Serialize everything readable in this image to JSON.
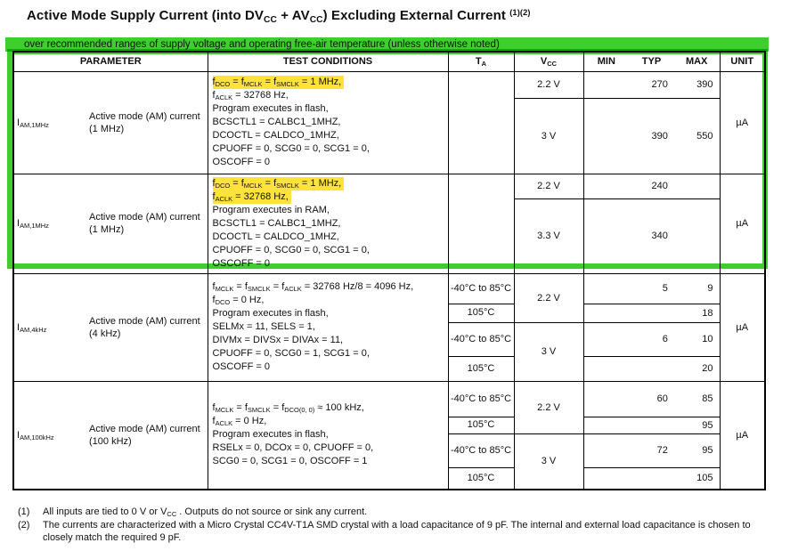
{
  "colors": {
    "green": "#3ecf2e",
    "yellow": "#ffe33b"
  },
  "title": "Active Mode Supply Current (into DV~CC~ + AV~CC~) Excluding External Current ^(1)(2)^",
  "subtitle": "over recommended ranges of supply voltage and operating free-air temperature (unless otherwise noted)",
  "table": {
    "headers": {
      "parameter": "PARAMETER",
      "test_conditions": "TEST CONDITIONS",
      "ta": "T~A~",
      "vcc": "V~CC~",
      "min": "MIN",
      "typ": "TYP",
      "max": "MAX",
      "unit": "UNIT"
    },
    "rows": [
      {
        "symbol": "I~AM,1MHz~",
        "name": "Active mode (AM) current (1 MHz)",
        "ta": "",
        "unit": "µA",
        "conditions": [
          {
            "text": "f~DCO~ = f~MCLK~ = f~SMCLK~ = 1 MHz,",
            "highlight": true
          },
          {
            "text": "f~ACLK~ = 32768 Hz,",
            "highlight": false
          },
          {
            "text": "Program executes in flash,",
            "highlight": false
          },
          {
            "text": "BCSCTL1 = CALBC1_1MHZ,",
            "highlight": false
          },
          {
            "text": "DCOCTL = CALDCO_1MHZ,",
            "highlight": false
          },
          {
            "text": "CPUOFF = 0, SCG0 = 0, SCG1 = 0,",
            "highlight": false
          },
          {
            "text": "OSCOFF = 0",
            "highlight": false
          }
        ],
        "subrows": [
          {
            "vcc": "2.2 V",
            "min": "",
            "typ": "270",
            "max": "390"
          },
          {
            "vcc": "3 V",
            "min": "",
            "typ": "390",
            "max": "550"
          }
        ]
      },
      {
        "symbol": "I~AM,1MHz~",
        "name": "Active mode (AM) current (1 MHz)",
        "ta": "",
        "unit": "µA",
        "conditions": [
          {
            "text": "f~DCO~ = f~MCLK~ = f~SMCLK~ = 1 MHz,",
            "highlight": true
          },
          {
            "text": "f~ACLK~ = 32768 Hz,",
            "highlight": true
          },
          {
            "text": "Program executes in RAM,",
            "highlight": false
          },
          {
            "text": "BCSCTL1 = CALBC1_1MHZ,",
            "highlight": false
          },
          {
            "text": "DCOCTL = CALDCO_1MHZ,",
            "highlight": false
          },
          {
            "text": "CPUOFF = 0, SCG0 = 0, SCG1 = 0,",
            "highlight": false
          },
          {
            "text": "OSCOFF = 0",
            "highlight": false
          }
        ],
        "subrows": [
          {
            "vcc": "2.2 V",
            "min": "",
            "typ": "240",
            "max": ""
          },
          {
            "vcc": "3.3 V",
            "min": "",
            "typ": "340",
            "max": ""
          }
        ]
      },
      {
        "symbol": "I~AM,4kHz~",
        "name": "Active mode (AM) current (4 kHz)",
        "unit": "µA",
        "conditions": [
          {
            "text": "f~MCLK~ = f~SMCLK~ = f~ACLK~ = 32768 Hz/8 = 4096 Hz,",
            "highlight": false
          },
          {
            "text": "f~DCO~ = 0 Hz,",
            "highlight": false
          },
          {
            "text": "Program executes in flash,",
            "highlight": false
          },
          {
            "text": "SELMx = 11, SELS = 1,",
            "highlight": false
          },
          {
            "text": "DIVMx = DIVSx = DIVAx = 11,",
            "highlight": false
          },
          {
            "text": "CPUOFF = 0, SCG0 = 1, SCG1 = 0,",
            "highlight": false
          },
          {
            "text": "OSCOFF = 0",
            "highlight": false
          }
        ],
        "subrows": [
          {
            "ta": "-40°C to 85°C",
            "vcc": "2.2 V",
            "min": "",
            "typ": "5",
            "max": "9"
          },
          {
            "ta": "105°C",
            "min": "",
            "typ": "",
            "max": "18"
          },
          {
            "ta": "-40°C to 85°C",
            "vcc": "3 V",
            "min": "",
            "typ": "6",
            "max": "10"
          },
          {
            "ta": "105°C",
            "min": "",
            "typ": "",
            "max": "20"
          }
        ]
      },
      {
        "symbol": "I~AM,100kHz~",
        "name": "Active mode (AM) current (100 kHz)",
        "unit": "µA",
        "conditions": [
          {
            "text": "f~MCLK~ = f~SMCLK~ = f~DCO(0, 0)~ ≈ 100 kHz,",
            "highlight": false
          },
          {
            "text": "f~ACLK~ = 0 Hz,",
            "highlight": false
          },
          {
            "text": "Program executes in flash,",
            "highlight": false
          },
          {
            "text": "RSELx = 0, DCOx = 0, CPUOFF = 0,",
            "highlight": false
          },
          {
            "text": "SCG0 = 0, SCG1 = 0, OSCOFF = 1",
            "highlight": false
          }
        ],
        "subrows": [
          {
            "ta": "-40°C to 85°C",
            "vcc": "2.2 V",
            "min": "",
            "typ": "60",
            "max": "85"
          },
          {
            "ta": "105°C",
            "min": "",
            "typ": "",
            "max": "95"
          },
          {
            "ta": "-40°C to 85°C",
            "vcc": "3 V",
            "min": "",
            "typ": "72",
            "max": "95"
          },
          {
            "ta": "105°C",
            "min": "",
            "typ": "",
            "max": "105"
          }
        ]
      }
    ]
  },
  "footnotes": [
    {
      "num": "(1)",
      "text": "All inputs are tied to 0 V or V~CC~ . Outputs do not source or sink any current."
    },
    {
      "num": "(2)",
      "text": "The currents are characterized with a Micro Crystal CC4V-T1A SMD crystal with a load capacitance of 9 pF. The internal and external load capacitance is chosen to closely match the required 9 pF."
    }
  ]
}
